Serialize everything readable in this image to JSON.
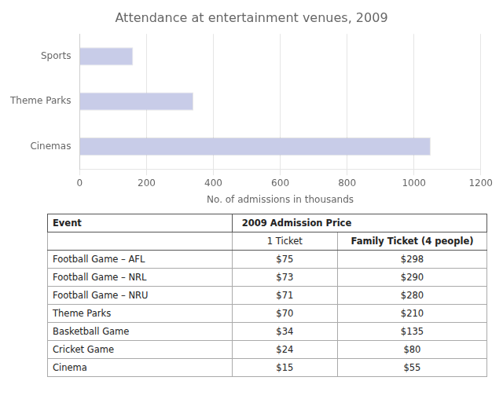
{
  "chart_data": {
    "type": "bar",
    "orientation": "horizontal",
    "title": "Attendance at entertainment venues, 2009",
    "categories": [
      "Cinemas",
      "Theme Parks",
      "Sports"
    ],
    "values": [
      1050,
      340,
      160
    ],
    "color": "#c8cce8",
    "xlabel": "No. of admissions in thousands",
    "xlim": [
      0,
      1200
    ],
    "xticks": [
      0,
      200,
      400,
      600,
      800,
      1000,
      1200
    ],
    "grid": true,
    "table": {
      "header": [
        "Event",
        "2009 Admission Price"
      ],
      "subheader": [
        "1 Ticket",
        "Family Ticket (4 people)"
      ],
      "rows": [
        [
          "Football Game – AFL",
          "$75",
          "$298"
        ],
        [
          "Football Game – NRL",
          "$73",
          "$290"
        ],
        [
          "Football Game – NRU",
          "$71",
          "$280"
        ],
        [
          "Theme Parks",
          "$70",
          "$210"
        ],
        [
          "Basketball Game",
          "$34",
          "$135"
        ],
        [
          "Cricket Game",
          "$24",
          "$80"
        ],
        [
          "Cinema",
          "$15",
          "$55"
        ]
      ]
    }
  }
}
